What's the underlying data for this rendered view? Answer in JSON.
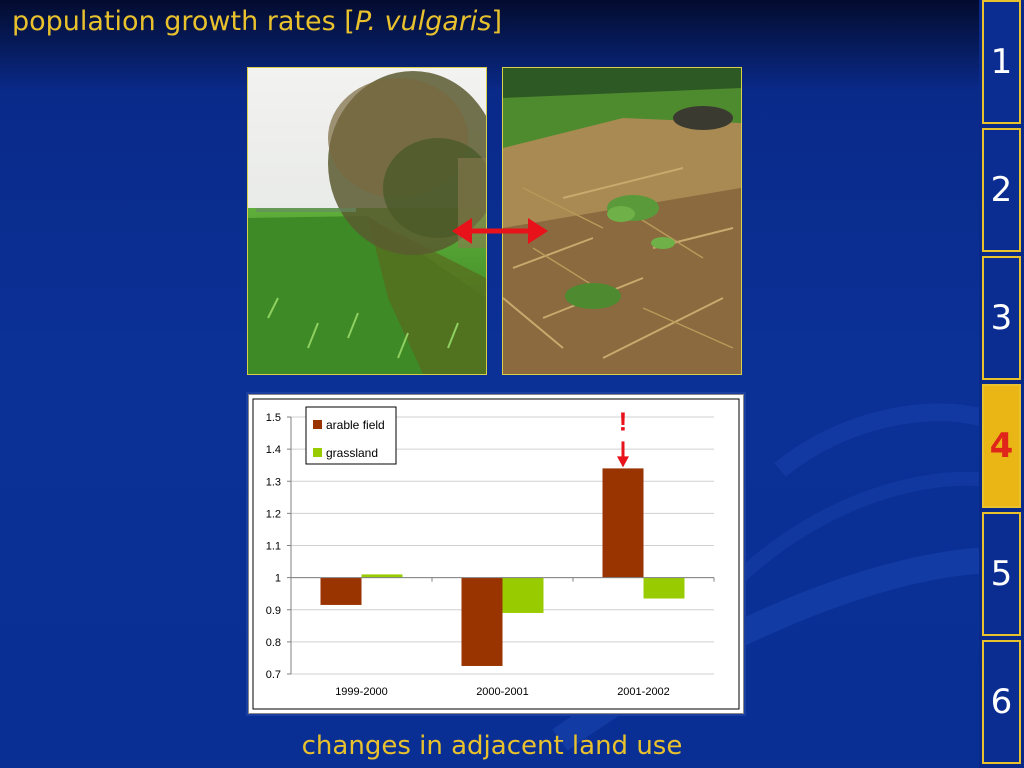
{
  "title": {
    "prefix": "population growth rates [",
    "species": "P. vulgaris",
    "suffix": "]"
  },
  "caption": "changes in adjacent land use",
  "nav": {
    "tabs": [
      "1",
      "2",
      "3",
      "4",
      "5",
      "6"
    ],
    "active_index": 3
  },
  "photos": [
    {
      "name": "willow-hedge-grassland-photo"
    },
    {
      "name": "leaf-litter-primrose-photo"
    }
  ],
  "colors": {
    "title": "#e8c12c",
    "arrow": "#e8121a",
    "arable": "#993300",
    "grassland": "#99cc00"
  },
  "chart_data": {
    "type": "bar",
    "categories": [
      "1999-2000",
      "2000-2001",
      "2001-2002"
    ],
    "series": [
      {
        "name": "arable field",
        "values": [
          0.915,
          0.725,
          1.34
        ],
        "color": "#993300"
      },
      {
        "name": "grassland",
        "values": [
          1.01,
          0.89,
          0.935
        ],
        "color": "#99cc00"
      }
    ],
    "baseline": 1,
    "ylim": [
      0.7,
      1.5
    ],
    "yticks": [
      "1.5",
      "1.4",
      "1.3",
      "1.2",
      "1.1",
      "1",
      "0.9",
      "0.8",
      "0.7"
    ],
    "ytick_values": [
      1.5,
      1.4,
      1.3,
      1.2,
      1.1,
      1,
      0.9,
      0.8,
      0.7
    ],
    "grid": true,
    "legend_position": "top-left",
    "annotation": {
      "text": "!",
      "category_index": 2,
      "series_index": 0
    }
  }
}
